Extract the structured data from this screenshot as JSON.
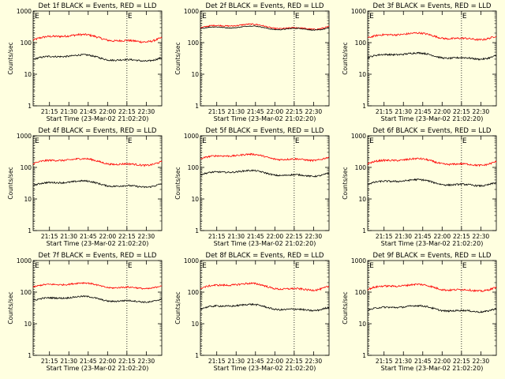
{
  "chart_data": [
    {
      "type": "line",
      "title": "Det 1f BLACK = Events, RED = LLD",
      "xlabel": "Start Time (23-Mar-02 21:02:20)",
      "ylabel": "Counts/sec",
      "yscale": "log",
      "ylim": [
        1,
        1000
      ],
      "yticks": [
        "1",
        "10",
        "100",
        "1000"
      ],
      "xlim": [
        "21:02:20",
        "22:42:00"
      ],
      "xticks": [
        "21:15",
        "21:30",
        "21:45",
        "22:00",
        "22:15",
        "22:30"
      ],
      "markers": [
        {
          "label": "E",
          "x": "21:03"
        },
        {
          "label": "E",
          "x": "22:15"
        }
      ],
      "series": [
        {
          "color": "#ff0000",
          "level": 140,
          "var": 0.25
        },
        {
          "color": "#000000",
          "level": 33,
          "var": 0.2
        }
      ]
    },
    {
      "type": "line",
      "title": "Det 2f BLACK = Events, RED = LLD",
      "xlabel": "Start Time (23-Mar-02 21:02:20)",
      "ylabel": "Counts/sec",
      "yscale": "log",
      "ylim": [
        1,
        1000
      ],
      "yticks": [
        "1",
        "10",
        "100",
        "1000"
      ],
      "xlim": [
        "21:02:20",
        "22:42:00"
      ],
      "xticks": [
        "21:15",
        "21:30",
        "21:45",
        "22:00",
        "22:15",
        "22:30"
      ],
      "markers": [
        {
          "label": "E",
          "x": "21:03"
        },
        {
          "label": "E",
          "x": "22:15"
        }
      ],
      "series": [
        {
          "color": "#ff0000",
          "level": 320,
          "var": 0.15
        },
        {
          "color": "#000000",
          "level": 290,
          "var": 0.1
        }
      ]
    },
    {
      "type": "line",
      "title": "Det 3f BLACK = Events, RED = LLD",
      "xlabel": "Start Time (23-Mar-02 21:02:20)",
      "ylabel": "Counts/sec",
      "yscale": "log",
      "ylim": [
        1,
        1000
      ],
      "yticks": [
        "1",
        "10",
        "100",
        "1000"
      ],
      "xlim": [
        "21:02:20",
        "22:42:00"
      ],
      "xticks": [
        "21:15",
        "21:30",
        "21:45",
        "22:00",
        "22:15",
        "22:30"
      ],
      "markers": [
        {
          "label": "E",
          "x": "21:03"
        },
        {
          "label": "E",
          "x": "22:15"
        }
      ],
      "series": [
        {
          "color": "#ff0000",
          "level": 160,
          "var": 0.22
        },
        {
          "color": "#000000",
          "level": 38,
          "var": 0.2
        }
      ]
    },
    {
      "type": "line",
      "title": "Det 4f BLACK = Events, RED = LLD",
      "xlabel": "Start Time (23-Mar-02 21:02:20)",
      "ylabel": "Counts/sec",
      "yscale": "log",
      "ylim": [
        1,
        1000
      ],
      "yticks": [
        "1",
        "10",
        "100",
        "1000"
      ],
      "xlim": [
        "21:02:20",
        "22:42:00"
      ],
      "xticks": [
        "21:15",
        "21:30",
        "21:45",
        "22:00",
        "22:15",
        "22:30"
      ],
      "markers": [
        {
          "label": "E",
          "x": "21:03"
        },
        {
          "label": "E",
          "x": "22:15"
        }
      ],
      "series": [
        {
          "color": "#ff0000",
          "level": 150,
          "var": 0.22
        },
        {
          "color": "#000000",
          "level": 30,
          "var": 0.2
        }
      ]
    },
    {
      "type": "line",
      "title": "Det 5f BLACK = Events, RED = LLD",
      "xlabel": "Start Time (23-Mar-02 21:02:20)",
      "ylabel": "Counts/sec",
      "yscale": "log",
      "ylim": [
        1,
        1000
      ],
      "yticks": [
        "1",
        "10",
        "100",
        "1000"
      ],
      "xlim": [
        "21:02:20",
        "22:42:00"
      ],
      "xticks": [
        "21:15",
        "21:30",
        "21:45",
        "22:00",
        "22:15",
        "22:30"
      ],
      "markers": [
        {
          "label": "E",
          "x": "21:03"
        },
        {
          "label": "E",
          "x": "22:15"
        }
      ],
      "series": [
        {
          "color": "#ff0000",
          "level": 210,
          "var": 0.2
        },
        {
          "color": "#000000",
          "level": 65,
          "var": 0.18
        }
      ]
    },
    {
      "type": "line",
      "title": "Det 6f BLACK = Events, RED = LLD",
      "xlabel": "Start Time (23-Mar-02 21:02:20)",
      "ylabel": "Counts/sec",
      "yscale": "log",
      "ylim": [
        1,
        1000
      ],
      "yticks": [
        "1",
        "10",
        "100",
        "1000"
      ],
      "xlim": [
        "21:02:20",
        "22:42:00"
      ],
      "xticks": [
        "21:15",
        "21:30",
        "21:45",
        "22:00",
        "22:15",
        "22:30"
      ],
      "markers": [
        {
          "label": "E",
          "x": "21:03"
        },
        {
          "label": "E",
          "x": "22:15"
        }
      ],
      "series": [
        {
          "color": "#ff0000",
          "level": 150,
          "var": 0.22
        },
        {
          "color": "#000000",
          "level": 33,
          "var": 0.2
        }
      ]
    },
    {
      "type": "line",
      "title": "Det 7f BLACK = Events, RED = LLD",
      "xlabel": "Start Time (23-Mar-02 21:02:20)",
      "ylabel": "Counts/sec",
      "yscale": "log",
      "ylim": [
        1,
        1000
      ],
      "yticks": [
        "1",
        "10",
        "100",
        "1000"
      ],
      "xlim": [
        "21:02:20",
        "22:42:00"
      ],
      "xticks": [
        "21:15",
        "21:30",
        "21:45",
        "22:00",
        "22:15",
        "22:30"
      ],
      "markers": [
        {
          "label": "E",
          "x": "21:03"
        },
        {
          "label": "E",
          "x": "22:15"
        }
      ],
      "series": [
        {
          "color": "#ff0000",
          "level": 160,
          "var": 0.18
        },
        {
          "color": "#000000",
          "level": 60,
          "var": 0.18
        }
      ]
    },
    {
      "type": "line",
      "title": "Det 8f BLACK = Events, RED = LLD",
      "xlabel": "Start Time (23-Mar-02 21:02:20)",
      "ylabel": "Counts/sec",
      "yscale": "log",
      "ylim": [
        1,
        1000
      ],
      "yticks": [
        "1",
        "10",
        "100",
        "1000"
      ],
      "xlim": [
        "21:02:20",
        "22:42:00"
      ],
      "xticks": [
        "21:15",
        "21:30",
        "21:45",
        "22:00",
        "22:15",
        "22:30"
      ],
      "markers": [
        {
          "label": "E",
          "x": "21:03"
        },
        {
          "label": "E",
          "x": "22:15"
        }
      ],
      "series": [
        {
          "color": "#ff0000",
          "level": 150,
          "var": 0.22
        },
        {
          "color": "#000000",
          "level": 33,
          "var": 0.2
        }
      ]
    },
    {
      "type": "line",
      "title": "Det 9f BLACK = Events, RED = LLD",
      "xlabel": "Start Time (23-Mar-02 21:02:20)",
      "ylabel": "Counts/sec",
      "yscale": "log",
      "ylim": [
        1,
        1000
      ],
      "yticks": [
        "1",
        "10",
        "100",
        "1000"
      ],
      "xlim": [
        "21:02:20",
        "22:42:00"
      ],
      "xticks": [
        "21:15",
        "21:30",
        "21:45",
        "22:00",
        "22:15",
        "22:30"
      ],
      "markers": [
        {
          "label": "E",
          "x": "21:03"
        },
        {
          "label": "E",
          "x": "22:15"
        }
      ],
      "series": [
        {
          "color": "#ff0000",
          "level": 140,
          "var": 0.22
        },
        {
          "color": "#000000",
          "level": 30,
          "var": 0.2
        }
      ]
    }
  ]
}
